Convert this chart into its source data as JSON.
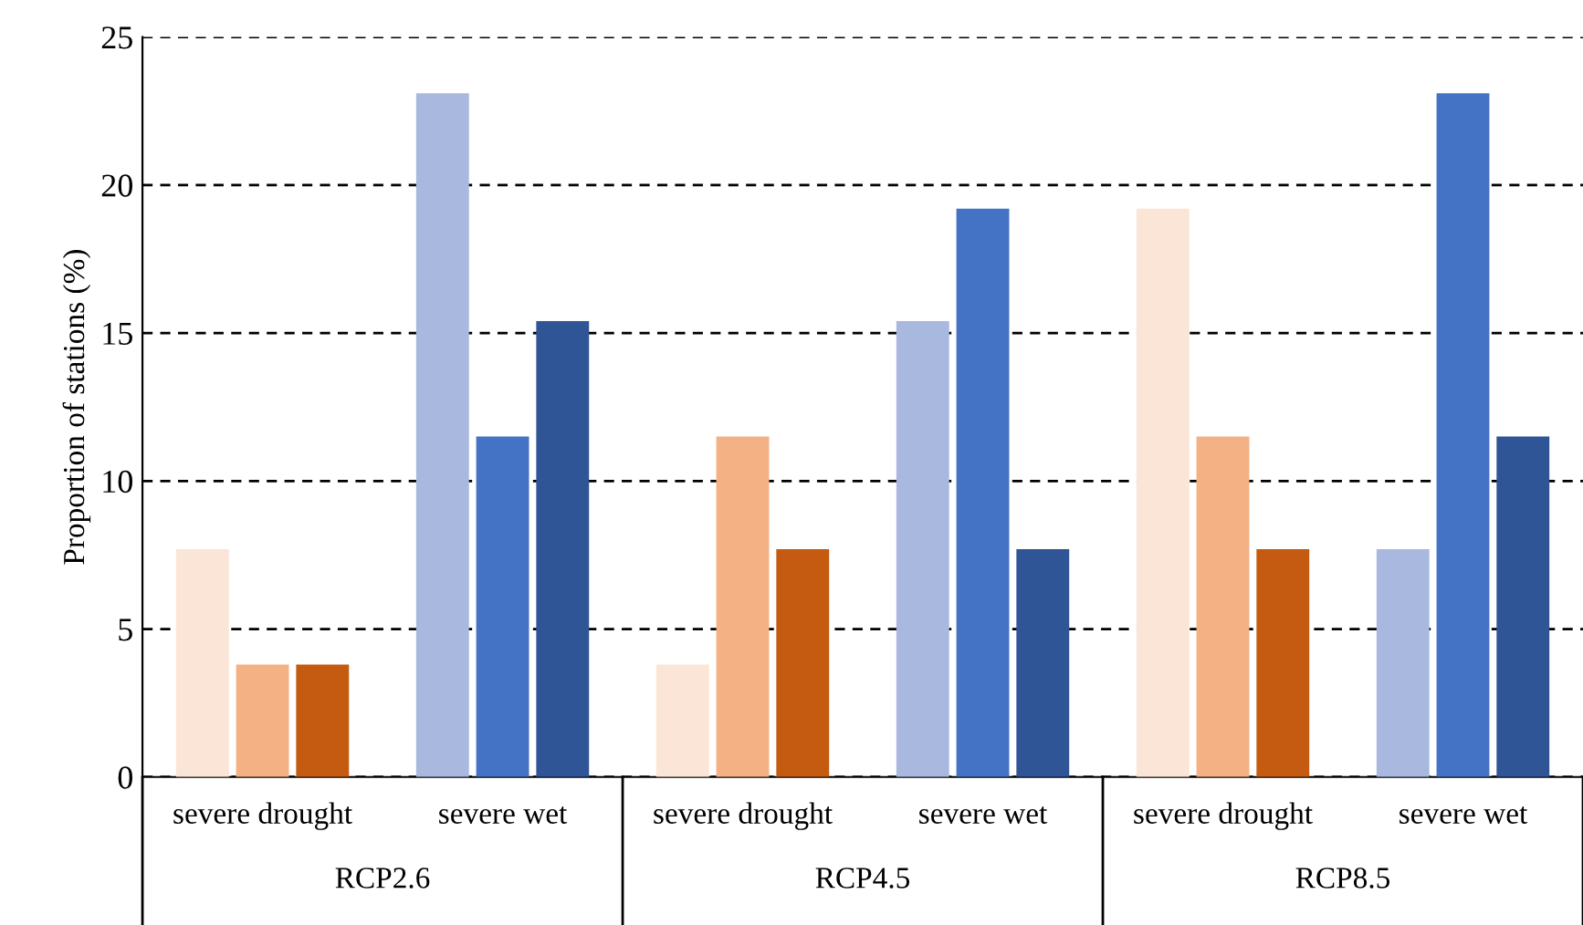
{
  "chart_data": {
    "type": "bar",
    "ylabel": "Proportion of stations (%)",
    "categories": [
      "severe drought",
      "severe wet",
      "severe drought",
      "severe wet",
      "severe drought",
      "severe wet"
    ],
    "series": [
      {
        "values": [
          7.7,
          23.1,
          3.8,
          15.4,
          19.2,
          7.7
        ],
        "colors": [
          "#fbe5d6",
          "#a9b8de",
          "#fbe5d6",
          "#a9b8de",
          "#fbe5d6",
          "#a9b8de"
        ]
      },
      {
        "values": [
          3.8,
          11.5,
          11.5,
          19.2,
          11.5,
          23.1
        ],
        "colors": [
          "#f4b183",
          "#4472c4",
          "#f4b183",
          "#4472c4",
          "#f4b183",
          "#4472c4"
        ]
      },
      {
        "values": [
          3.8,
          15.4,
          7.7,
          7.7,
          7.7,
          11.5
        ],
        "colors": [
          "#c55a11",
          "#2f5597",
          "#c55a11",
          "#2f5597",
          "#c55a11",
          "#2f5597"
        ]
      }
    ],
    "ylim": [
      0,
      25
    ],
    "yticks": [
      0,
      5,
      10,
      15,
      20,
      25
    ],
    "grid": "y",
    "annotations": [
      "RCP2.6",
      "RCP4.5",
      "RCP8.5"
    ]
  }
}
